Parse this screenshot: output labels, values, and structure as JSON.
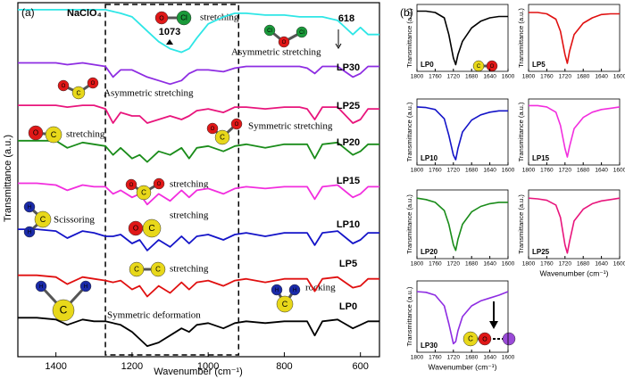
{
  "chart_data": [
    {
      "type": "line",
      "panel_label": "(a)",
      "xlabel": "Wavenumber (cm⁻¹)",
      "ylabel": "Transmittance (a.u.)",
      "xlim": [
        1500,
        550
      ],
      "xticks": [
        1400,
        1200,
        1000,
        800,
        600
      ],
      "ylim": [
        0,
        100
      ],
      "highlight": [
        1270,
        920
      ],
      "atoms": [
        "O",
        "C",
        "Cl",
        "H"
      ],
      "annotations": [
        "stretching",
        "1073",
        "618",
        "Asymmetric stretching",
        "Asymmetric stretching",
        "Symmetric stretching",
        "stretching",
        "stretching",
        "Scissoring",
        "stretching",
        "stretching",
        "rocking",
        "Symmetric deformation"
      ],
      "x": [
        1500,
        1450,
        1400,
        1370,
        1330,
        1300,
        1270,
        1250,
        1230,
        1200,
        1180,
        1160,
        1130,
        1100,
        1070,
        1050,
        1030,
        1000,
        960,
        930,
        900,
        850,
        800,
        760,
        740,
        720,
        700,
        660,
        620,
        600,
        580,
        550
      ],
      "series": [
        {
          "name": "NaClO₄",
          "color": "#2ee6e6",
          "values": [
            98,
            98,
            98,
            98,
            98,
            98,
            98,
            97.5,
            97,
            96,
            94,
            92,
            89,
            87,
            86,
            87,
            90,
            94,
            96,
            97,
            97,
            96.5,
            96.5,
            96,
            96,
            96,
            96,
            95,
            91,
            93,
            91,
            91
          ]
        },
        {
          "name": "LP30",
          "color": "#8e2de2",
          "values": [
            83,
            83,
            83,
            82.5,
            83,
            82.5,
            82,
            79,
            81,
            81,
            80,
            79,
            78,
            77,
            78,
            80,
            81,
            81,
            80.5,
            81.5,
            82,
            82,
            82,
            82,
            81.5,
            80,
            82,
            82,
            79,
            80,
            82,
            82
          ]
        },
        {
          "name": "LP25",
          "color": "#e8157c",
          "values": [
            71,
            71,
            71,
            70.5,
            71,
            71,
            70,
            66,
            69,
            68,
            68,
            66,
            67,
            68,
            67,
            68,
            69.5,
            70,
            69,
            70.5,
            70.5,
            70,
            70.5,
            70.5,
            70,
            67,
            70.5,
            70.5,
            66,
            67,
            70,
            70
          ]
        },
        {
          "name": "LP20",
          "color": "#1a8c1a",
          "values": [
            61,
            61,
            61,
            59,
            60.5,
            60,
            59.5,
            57,
            59,
            56,
            57,
            55,
            58,
            57,
            59,
            56,
            59,
            59.5,
            58,
            59.5,
            60,
            59,
            60,
            60,
            60,
            56,
            60,
            60.5,
            57,
            58,
            60,
            60
          ]
        },
        {
          "name": "LP15",
          "color": "#f22ede",
          "values": [
            49,
            49,
            48.5,
            47,
            48.5,
            48,
            48,
            46,
            47,
            45,
            46,
            43,
            46,
            44,
            47,
            45,
            47,
            47.5,
            46,
            47.5,
            48,
            47.5,
            48,
            48,
            48,
            44.5,
            48,
            48.5,
            45,
            46,
            48,
            48
          ]
        },
        {
          "name": "LP10",
          "color": "#1414c8",
          "values": [
            36,
            36,
            35.5,
            33.5,
            35.5,
            35,
            34,
            34,
            34.5,
            32,
            33,
            30,
            33,
            31,
            34,
            32,
            34,
            34.5,
            33,
            34.5,
            35,
            34,
            35,
            35,
            35,
            31.5,
            35,
            35.5,
            32,
            33,
            35,
            35
          ]
        },
        {
          "name": "LP5",
          "color": "#e01010",
          "values": [
            23,
            23,
            22.5,
            20.5,
            22.5,
            22,
            21.5,
            21,
            21.5,
            19,
            20,
            17,
            20,
            18,
            21,
            19,
            21,
            21.5,
            20,
            21.5,
            22,
            21,
            22,
            22,
            22,
            18.5,
            22,
            22.5,
            19.5,
            20,
            22,
            22
          ]
        },
        {
          "name": "LP0",
          "color": "#000000",
          "values": [
            11,
            11,
            10.5,
            9,
            10.5,
            10,
            10,
            9.5,
            9,
            7,
            5,
            3,
            4,
            6,
            8,
            7,
            9,
            9.5,
            8,
            9.5,
            10,
            9.5,
            10,
            10,
            10,
            6,
            10,
            10.5,
            8,
            9,
            10,
            10
          ]
        }
      ]
    },
    {
      "type": "line",
      "panel_label": "(b)",
      "ylabel": "Transmittance (a.u.)",
      "xlim": [
        1800,
        1600
      ],
      "xticks": [
        1800,
        1760,
        1720,
        1680,
        1640,
        1600
      ],
      "ylim": [
        0,
        100
      ],
      "x": [
        1800,
        1780,
        1760,
        1740,
        1730,
        1720,
        1715,
        1710,
        1700,
        1680,
        1660,
        1640,
        1620,
        1600
      ],
      "series": [
        {
          "name": "LP0",
          "color": "#000000",
          "values": [
            90,
            90,
            88,
            80,
            55,
            20,
            10,
            25,
            45,
            65,
            75,
            80,
            82,
            82
          ]
        }
      ]
    },
    {
      "type": "line",
      "ylabel": "Transmittance (a.u.)",
      "xlim": [
        1800,
        1600
      ],
      "xticks": [
        1800,
        1760,
        1720,
        1680,
        1640,
        1600
      ],
      "ylim": [
        0,
        100
      ],
      "x": [
        1800,
        1780,
        1760,
        1740,
        1730,
        1720,
        1715,
        1710,
        1700,
        1680,
        1660,
        1640,
        1620,
        1600
      ],
      "series": [
        {
          "name": "LP5",
          "color": "#e01010",
          "values": [
            88,
            88,
            86,
            78,
            60,
            25,
            12,
            30,
            55,
            72,
            80,
            85,
            86,
            86
          ]
        }
      ]
    },
    {
      "type": "line",
      "ylabel": "Transmittance (a.u.)",
      "xlim": [
        1800,
        1600
      ],
      "xticks": [
        1800,
        1760,
        1720,
        1680,
        1640,
        1600
      ],
      "ylim": [
        0,
        100
      ],
      "x": [
        1800,
        1780,
        1760,
        1740,
        1730,
        1720,
        1715,
        1710,
        1700,
        1680,
        1660,
        1640,
        1620,
        1600
      ],
      "series": [
        {
          "name": "LP10",
          "color": "#1414c8",
          "values": [
            88,
            87,
            84,
            70,
            45,
            15,
            8,
            25,
            50,
            68,
            76,
            80,
            82,
            82
          ]
        }
      ]
    },
    {
      "type": "line",
      "ylabel": "Transmittance (a.u.)",
      "xlim": [
        1800,
        1600
      ],
      "xticks": [
        1800,
        1760,
        1720,
        1680,
        1640,
        1600
      ],
      "ylim": [
        0,
        100
      ],
      "x": [
        1800,
        1780,
        1760,
        1740,
        1730,
        1720,
        1715,
        1710,
        1700,
        1680,
        1660,
        1640,
        1620,
        1600
      ],
      "series": [
        {
          "name": "LP15",
          "color": "#f22ede",
          "values": [
            90,
            90,
            88,
            80,
            60,
            25,
            12,
            28,
            55,
            72,
            80,
            84,
            86,
            88
          ]
        }
      ]
    },
    {
      "type": "line",
      "ylabel": "Transmittance (a.u.)",
      "xlim": [
        1800,
        1600
      ],
      "xticks": [
        1800,
        1760,
        1720,
        1680,
        1640,
        1600
      ],
      "ylim": [
        0,
        100
      ],
      "x": [
        1800,
        1780,
        1760,
        1740,
        1730,
        1720,
        1715,
        1710,
        1700,
        1680,
        1660,
        1640,
        1620,
        1600
      ],
      "series": [
        {
          "name": "LP20",
          "color": "#1a8c1a",
          "values": [
            88,
            86,
            82,
            70,
            50,
            20,
            12,
            28,
            50,
            68,
            76,
            80,
            82,
            82
          ]
        }
      ]
    },
    {
      "type": "line",
      "ylabel": "Transmittance (a.u.)",
      "xlabel": "Wavenumber (cm⁻¹)",
      "xlim": [
        1800,
        1600
      ],
      "xticks": [
        1800,
        1760,
        1720,
        1680,
        1640,
        1600
      ],
      "ylim": [
        0,
        100
      ],
      "x": [
        1800,
        1780,
        1760,
        1740,
        1730,
        1720,
        1715,
        1710,
        1700,
        1680,
        1660,
        1640,
        1620,
        1600
      ],
      "series": [
        {
          "name": "LP25",
          "color": "#e8157c",
          "values": [
            88,
            87,
            85,
            78,
            60,
            20,
            8,
            25,
            55,
            72,
            80,
            84,
            86,
            88
          ]
        }
      ]
    },
    {
      "type": "line",
      "ylabel": "Transmittance (a.u.)",
      "xlabel": "Wavenumber (cm⁻¹)",
      "xlim": [
        1800,
        1600
      ],
      "xticks": [
        1800,
        1760,
        1720,
        1680,
        1640,
        1600
      ],
      "ylim": [
        0,
        100
      ],
      "x": [
        1800,
        1780,
        1760,
        1740,
        1730,
        1720,
        1715,
        1710,
        1700,
        1680,
        1660,
        1640,
        1620,
        1600
      ],
      "series": [
        {
          "name": "LP30",
          "color": "#8e2de2",
          "values": [
            85,
            84,
            80,
            65,
            40,
            12,
            15,
            30,
            50,
            65,
            72,
            76,
            80,
            85
          ]
        }
      ]
    }
  ]
}
